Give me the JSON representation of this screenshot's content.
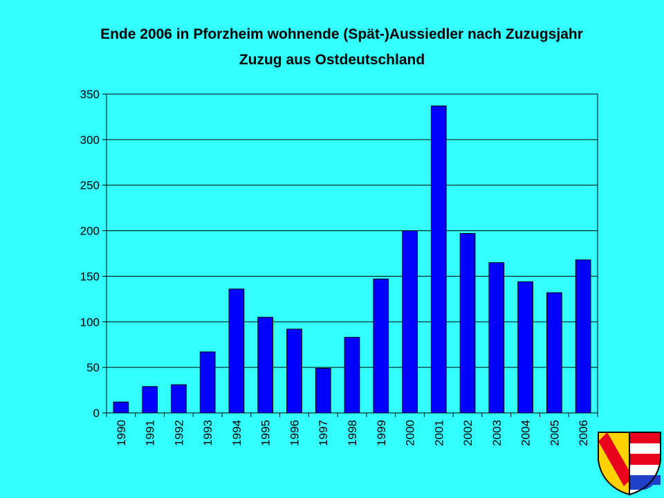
{
  "title": "Ende 2006 in Pforzheim wohnende (Spät-)Aussiedler nach Zuzugsjahr",
  "subtitle": "Zuzug aus Ostdeutschland",
  "colors": {
    "background": "#33FFFF",
    "bar": "#0000FF",
    "plot_background": "#33FFFF"
  },
  "chart_data": {
    "type": "bar",
    "title": "Ende 2006 in Pforzheim wohnende (Spät-)Aussiedler nach Zuzugsjahr",
    "subtitle": "Zuzug aus Ostdeutschland",
    "xlabel": "",
    "ylabel": "",
    "categories": [
      "1990",
      "1991",
      "1992",
      "1993",
      "1994",
      "1995",
      "1996",
      "1997",
      "1998",
      "1999",
      "2000",
      "2001",
      "2002",
      "2003",
      "2004",
      "2005",
      "2006"
    ],
    "values": [
      12,
      29,
      31,
      67,
      136,
      105,
      92,
      49,
      83,
      147,
      200,
      337,
      197,
      165,
      144,
      132,
      168
    ],
    "ylim": [
      0,
      350
    ],
    "yticks": [
      0,
      50,
      100,
      150,
      200,
      250,
      300,
      350
    ],
    "grid": true,
    "legend": "none"
  },
  "crest_icon": "pforzheim-coat-of-arms-icon"
}
